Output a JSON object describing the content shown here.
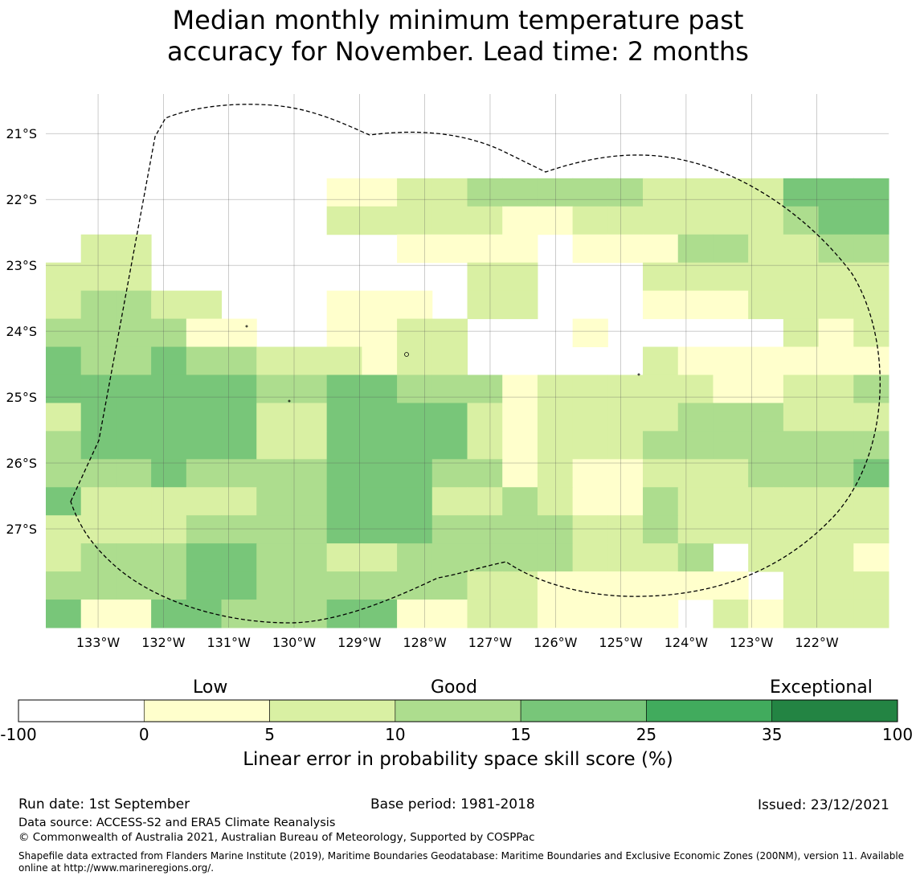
{
  "title": {
    "line1": "Median monthly minimum temperature past",
    "line2": "accuracy for November. Lead time: 2 months"
  },
  "map": {
    "lon_ticks": [
      "133°W",
      "132°W",
      "131°W",
      "130°W",
      "129°W",
      "128°W",
      "127°W",
      "126°W",
      "125°W",
      "124°W",
      "123°W",
      "122°W"
    ],
    "lat_ticks": [
      "21°S",
      "22°S",
      "23°S",
      "24°S",
      "25°S",
      "26°S",
      "27°S"
    ],
    "lon_range": [
      -133.8,
      -120.9
    ],
    "lat_range": [
      -20.4,
      -28.5
    ],
    "grid_lines": true,
    "boundary_style": "dashed",
    "cell_size_deg": 0.833,
    "grid_colors": [
      [
        0,
        0,
        0,
        0,
        0,
        0,
        0,
        0,
        0,
        0,
        0,
        0,
        0,
        0,
        0,
        0,
        0,
        0,
        0,
        0,
        0,
        0,
        0,
        0
      ],
      [
        0,
        0,
        0,
        0,
        0,
        0,
        0,
        0,
        0,
        0,
        0,
        0,
        0,
        0,
        0,
        0,
        0,
        0,
        0,
        0,
        0,
        0,
        0,
        0
      ],
      [
        0,
        0,
        0,
        0,
        0,
        0,
        0,
        0,
        0,
        0,
        0,
        0,
        0,
        0,
        0,
        0,
        0,
        0,
        0,
        0,
        0,
        0,
        0,
        0
      ],
      [
        0,
        0,
        0,
        0,
        0,
        0,
        0,
        0,
        1,
        1,
        2,
        2,
        3,
        3,
        3,
        3,
        3,
        2,
        2,
        2,
        2,
        4,
        4,
        4
      ],
      [
        0,
        0,
        0,
        0,
        0,
        0,
        0,
        0,
        2,
        2,
        2,
        2,
        2,
        1,
        1,
        2,
        2,
        2,
        2,
        2,
        2,
        3,
        4,
        4
      ],
      [
        0,
        2,
        2,
        0,
        0,
        0,
        0,
        0,
        0,
        0,
        1,
        1,
        1,
        1,
        0,
        1,
        1,
        1,
        3,
        3,
        2,
        2,
        3,
        3
      ],
      [
        2,
        2,
        2,
        0,
        0,
        0,
        0,
        0,
        0,
        0,
        0,
        0,
        2,
        2,
        0,
        0,
        0,
        2,
        2,
        2,
        2,
        2,
        2,
        2
      ],
      [
        2,
        3,
        3,
        2,
        2,
        0,
        0,
        0,
        1,
        1,
        1,
        0,
        2,
        2,
        0,
        0,
        0,
        1,
        1,
        1,
        2,
        2,
        2,
        2
      ],
      [
        3,
        3,
        3,
        3,
        1,
        1,
        0,
        0,
        1,
        1,
        2,
        2,
        0,
        0,
        0,
        1,
        0,
        0,
        0,
        0,
        0,
        2,
        1,
        2
      ],
      [
        4,
        3,
        3,
        4,
        3,
        3,
        2,
        2,
        2,
        1,
        2,
        2,
        0,
        0,
        0,
        0,
        0,
        2,
        1,
        1,
        1,
        1,
        1,
        1
      ],
      [
        4,
        4,
        4,
        4,
        4,
        4,
        3,
        3,
        4,
        4,
        3,
        3,
        3,
        1,
        2,
        2,
        2,
        2,
        2,
        1,
        1,
        2,
        2,
        3
      ],
      [
        2,
        4,
        4,
        4,
        4,
        4,
        2,
        2,
        4,
        4,
        4,
        4,
        2,
        1,
        2,
        2,
        2,
        2,
        3,
        3,
        3,
        2,
        2,
        2
      ],
      [
        3,
        4,
        4,
        4,
        4,
        4,
        2,
        2,
        4,
        4,
        4,
        4,
        2,
        1,
        2,
        2,
        2,
        3,
        3,
        3,
        3,
        3,
        3,
        3
      ],
      [
        3,
        3,
        3,
        4,
        3,
        3,
        3,
        3,
        4,
        4,
        4,
        3,
        3,
        1,
        2,
        1,
        1,
        2,
        2,
        2,
        3,
        3,
        3,
        4
      ],
      [
        4,
        2,
        2,
        2,
        2,
        2,
        3,
        3,
        4,
        4,
        4,
        2,
        2,
        3,
        2,
        1,
        1,
        3,
        2,
        2,
        2,
        2,
        2,
        2
      ],
      [
        2,
        2,
        2,
        2,
        3,
        3,
        3,
        3,
        4,
        4,
        4,
        3,
        3,
        3,
        3,
        2,
        2,
        3,
        2,
        2,
        2,
        2,
        2,
        2
      ],
      [
        2,
        3,
        3,
        3,
        4,
        4,
        3,
        3,
        2,
        2,
        3,
        3,
        3,
        3,
        3,
        2,
        2,
        2,
        3,
        0,
        2,
        2,
        2,
        1
      ],
      [
        3,
        3,
        3,
        3,
        4,
        4,
        3,
        3,
        3,
        3,
        3,
        3,
        2,
        2,
        1,
        1,
        1,
        1,
        1,
        1,
        0,
        2,
        2,
        2
      ],
      [
        4,
        1,
        1,
        4,
        4,
        3,
        3,
        3,
        4,
        4,
        1,
        1,
        2,
        2,
        1,
        1,
        1,
        1,
        0,
        2,
        1,
        2,
        2,
        2
      ]
    ]
  },
  "colorbar": {
    "headings": [
      "Low",
      "Good",
      "Exceptional"
    ],
    "ticks": [
      "-100",
      "0",
      "5",
      "10",
      "15",
      "25",
      "35",
      "100"
    ],
    "colors": [
      "#ffffff",
      "#ffffcc",
      "#d9f0a3",
      "#addd8e",
      "#78c679",
      "#41ab5d",
      "#238443"
    ],
    "label": "Linear error in probability space skill score (%)"
  },
  "footer": {
    "run_date": "Run date: 1st September",
    "base_period": "Base period: 1981-2018",
    "issued": "Issued: 23/12/2021",
    "data_source": "Data source: ACCESS-S2 and ERA5 Climate Reanalysis",
    "copyright": "© Commonwealth of Australia 2021, Australian Bureau of Meteorology, Supported by COSPPac",
    "shapefile_line1": "Shapefile data extracted from Flanders Marine Institute (2019), Maritime Boundaries Geodatabase: Maritime Boundaries and Exclusive Economic Zones (200NM), version 11. Available",
    "shapefile_line2": "online at http://www.marineregions.org/."
  }
}
